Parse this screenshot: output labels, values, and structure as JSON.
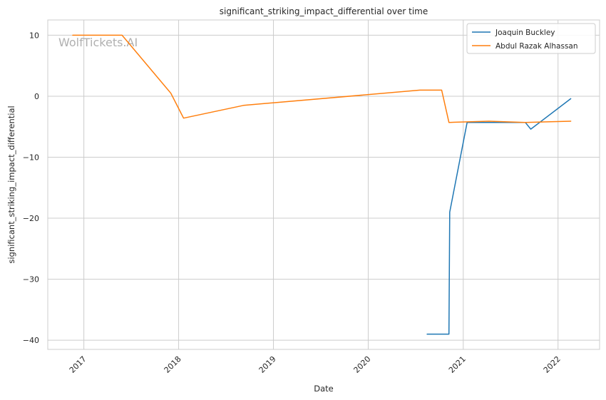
{
  "chart_data": {
    "type": "line",
    "title": "significant_striking_impact_differential over time",
    "xlabel": "Date",
    "ylabel": "significant_striking_impact_differential",
    "x_ticks": [
      "2017",
      "2018",
      "2019",
      "2020",
      "2021",
      "2022"
    ],
    "y_ticks": [
      10,
      0,
      -10,
      -20,
      -30,
      -40
    ],
    "xlim": [
      "2016-08-15",
      "2022-06-10"
    ],
    "ylim": [
      -41.5,
      12.5
    ],
    "grid": true,
    "legend_position": "top-right",
    "watermark": "WolfTickets.AI",
    "series": [
      {
        "name": "Joaquin Buckley",
        "color": "#1f77b4",
        "points": [
          [
            "2020-08-15",
            -39.0
          ],
          [
            "2020-11-07",
            -39.0
          ],
          [
            "2020-11-10",
            -19.0
          ],
          [
            "2021-01-16",
            -4.3
          ],
          [
            "2021-04-10",
            -4.3
          ],
          [
            "2021-08-28",
            -4.3
          ],
          [
            "2021-09-18",
            -5.4
          ],
          [
            "2022-02-19",
            -0.4
          ]
        ]
      },
      {
        "name": "Abdul Razak Alhassan",
        "color": "#ff7f0e",
        "points": [
          [
            "2016-11-19",
            10.0
          ],
          [
            "2017-05-28",
            10.0
          ],
          [
            "2017-12-02",
            0.5
          ],
          [
            "2018-01-20",
            -3.6
          ],
          [
            "2018-09-08",
            -1.5
          ],
          [
            "2020-07-18",
            1.0
          ],
          [
            "2020-10-10",
            1.0
          ],
          [
            "2020-11-07",
            -4.3
          ],
          [
            "2021-04-10",
            -4.1
          ],
          [
            "2021-08-28",
            -4.3
          ],
          [
            "2022-02-19",
            -4.1
          ]
        ]
      }
    ]
  }
}
